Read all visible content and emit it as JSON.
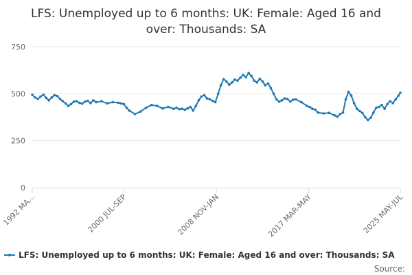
{
  "chart_data": {
    "type": "line",
    "title": "LFS: Unemployed up to 6 months: UK: Female: Aged 16 and over: Thousands: SA",
    "title_lines": [
      "LFS: Unemployed up to 6 months: UK: Female: Aged 16 and",
      "over: Thousands: SA"
    ],
    "xlabel": "",
    "ylabel": "",
    "ylim": [
      0,
      750
    ],
    "yticks": [
      0,
      250,
      500,
      750
    ],
    "xlim": [
      1992.25,
      2025.42
    ],
    "xticks": [
      {
        "x": 1992.25,
        "label": "1992 MA..."
      },
      {
        "x": 2000.5,
        "label": "2000 JUL-SEP"
      },
      {
        "x": 2008.83,
        "label": "2008 NOV-JAN"
      },
      {
        "x": 2017.17,
        "label": "2017 MAR-MAY"
      },
      {
        "x": 2025.42,
        "label": "2025 MAY-JUL"
      }
    ],
    "grid": true,
    "legend": "bottom",
    "color": "#1f78b4",
    "series": [
      {
        "name": "LFS: Unemployed up to 6 months: UK: Female: Aged 16 and over: Thousands: SA",
        "x": [
          1992.25,
          1992.5,
          1992.75,
          1993.0,
          1993.25,
          1993.5,
          1993.75,
          1994.0,
          1994.25,
          1994.5,
          1994.75,
          1995.0,
          1995.25,
          1995.5,
          1995.75,
          1996.0,
          1996.25,
          1996.5,
          1996.75,
          1997.0,
          1997.25,
          1997.5,
          1997.75,
          1998.0,
          1998.5,
          1999.0,
          1999.5,
          2000.0,
          2000.25,
          2000.5,
          2000.75,
          2001.0,
          2001.5,
          2002.0,
          2002.5,
          2003.0,
          2003.5,
          2004.0,
          2004.5,
          2005.0,
          2005.25,
          2005.5,
          2005.75,
          2006.0,
          2006.25,
          2006.5,
          2006.75,
          2007.0,
          2007.25,
          2007.5,
          2007.75,
          2008.0,
          2008.25,
          2008.5,
          2008.75,
          2009.0,
          2009.25,
          2009.5,
          2009.75,
          2010.0,
          2010.25,
          2010.5,
          2010.75,
          2011.0,
          2011.25,
          2011.5,
          2011.75,
          2012.0,
          2012.25,
          2012.5,
          2012.75,
          2013.0,
          2013.25,
          2013.5,
          2013.75,
          2014.0,
          2014.25,
          2014.5,
          2014.75,
          2015.0,
          2015.25,
          2015.5,
          2015.75,
          2016.0,
          2016.5,
          2017.0,
          2017.25,
          2017.5,
          2017.75,
          2018.0,
          2018.5,
          2019.0,
          2019.5,
          2019.75,
          2020.0,
          2020.25,
          2020.5,
          2020.75,
          2021.0,
          2021.25,
          2021.5,
          2021.75,
          2022.0,
          2022.25,
          2022.5,
          2022.75,
          2023.0,
          2023.25,
          2023.5,
          2023.75,
          2024.0,
          2024.25,
          2024.5,
          2024.75,
          2025.0,
          2025.25,
          2025.42
        ],
        "values": [
          495,
          480,
          472,
          485,
          495,
          478,
          465,
          480,
          492,
          488,
          472,
          460,
          448,
          435,
          445,
          458,
          460,
          452,
          447,
          458,
          462,
          450,
          465,
          455,
          460,
          448,
          455,
          452,
          448,
          445,
          425,
          410,
          392,
          405,
          425,
          440,
          435,
          422,
          430,
          420,
          425,
          418,
          420,
          415,
          422,
          430,
          410,
          435,
          465,
          485,
          492,
          475,
          470,
          462,
          455,
          500,
          545,
          578,
          565,
          548,
          560,
          575,
          570,
          585,
          600,
          588,
          610,
          595,
          570,
          560,
          580,
          565,
          545,
          555,
          530,
          500,
          470,
          458,
          465,
          475,
          472,
          458,
          468,
          470,
          455,
          435,
          430,
          420,
          415,
          400,
          395,
          398,
          385,
          378,
          392,
          400,
          470,
          510,
          490,
          450,
          420,
          408,
          398,
          375,
          360,
          372,
          400,
          425,
          430,
          440,
          420,
          445,
          460,
          450,
          470,
          490,
          505
        ]
      }
    ]
  },
  "legend": {
    "label": "LFS: Unemployed up to 6 months: UK: Female: Aged 16 and over: Thousands: SA"
  },
  "credits": {
    "label": "Source:"
  }
}
